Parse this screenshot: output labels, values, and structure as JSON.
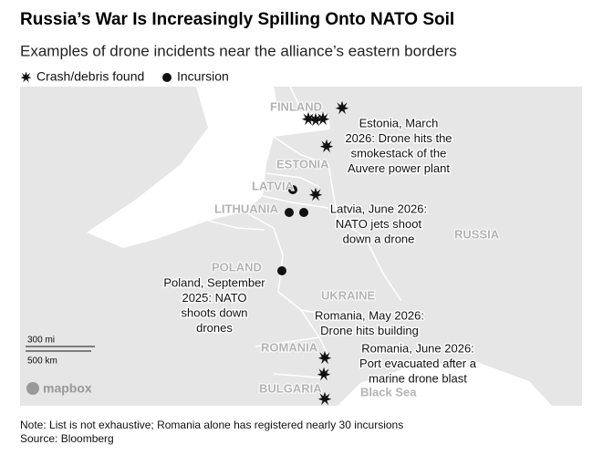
{
  "header": {
    "title": "Russia’s War Is Increasingly Spilling Onto NATO Soil",
    "subtitle": "Examples of drone incidents near the alliance’s eastern borders"
  },
  "legend": [
    "Crash/debris found",
    "Incursion"
  ],
  "map": {
    "labels": [
      "FINLAND",
      "ESTONIA",
      "LATVIA",
      "LITHUANIA",
      "POLAND",
      "UKRAINE",
      "RUSSIA",
      "ROMANIA",
      "BULGARIA",
      "Black Sea"
    ],
    "annotations": [
      {
        "lines": [
          "Estonia, March",
          "2026: Drone hits the",
          "smokestack of the",
          "Auvere power plant"
        ]
      },
      {
        "lines": [
          "Latvia, June 2026:",
          "NATO jets shoot",
          "down a drone"
        ]
      },
      {
        "lines": [
          "Poland, September",
          "2025: NATO",
          "shoots down",
          "drones"
        ]
      },
      {
        "lines": [
          "Romania, May 2026:",
          "Drone hits building"
        ]
      },
      {
        "lines": [
          "Romania, June 2026:",
          "Port evacuated after a",
          "marine drone blast"
        ]
      }
    ],
    "scale": [
      "300 mi",
      "500 km"
    ],
    "attribution": "mapbox"
  },
  "footer": {
    "note": "Note: List is not exhaustive; Romania alone has registered nearly 30 incursions",
    "source": "Source: Bloomberg"
  }
}
